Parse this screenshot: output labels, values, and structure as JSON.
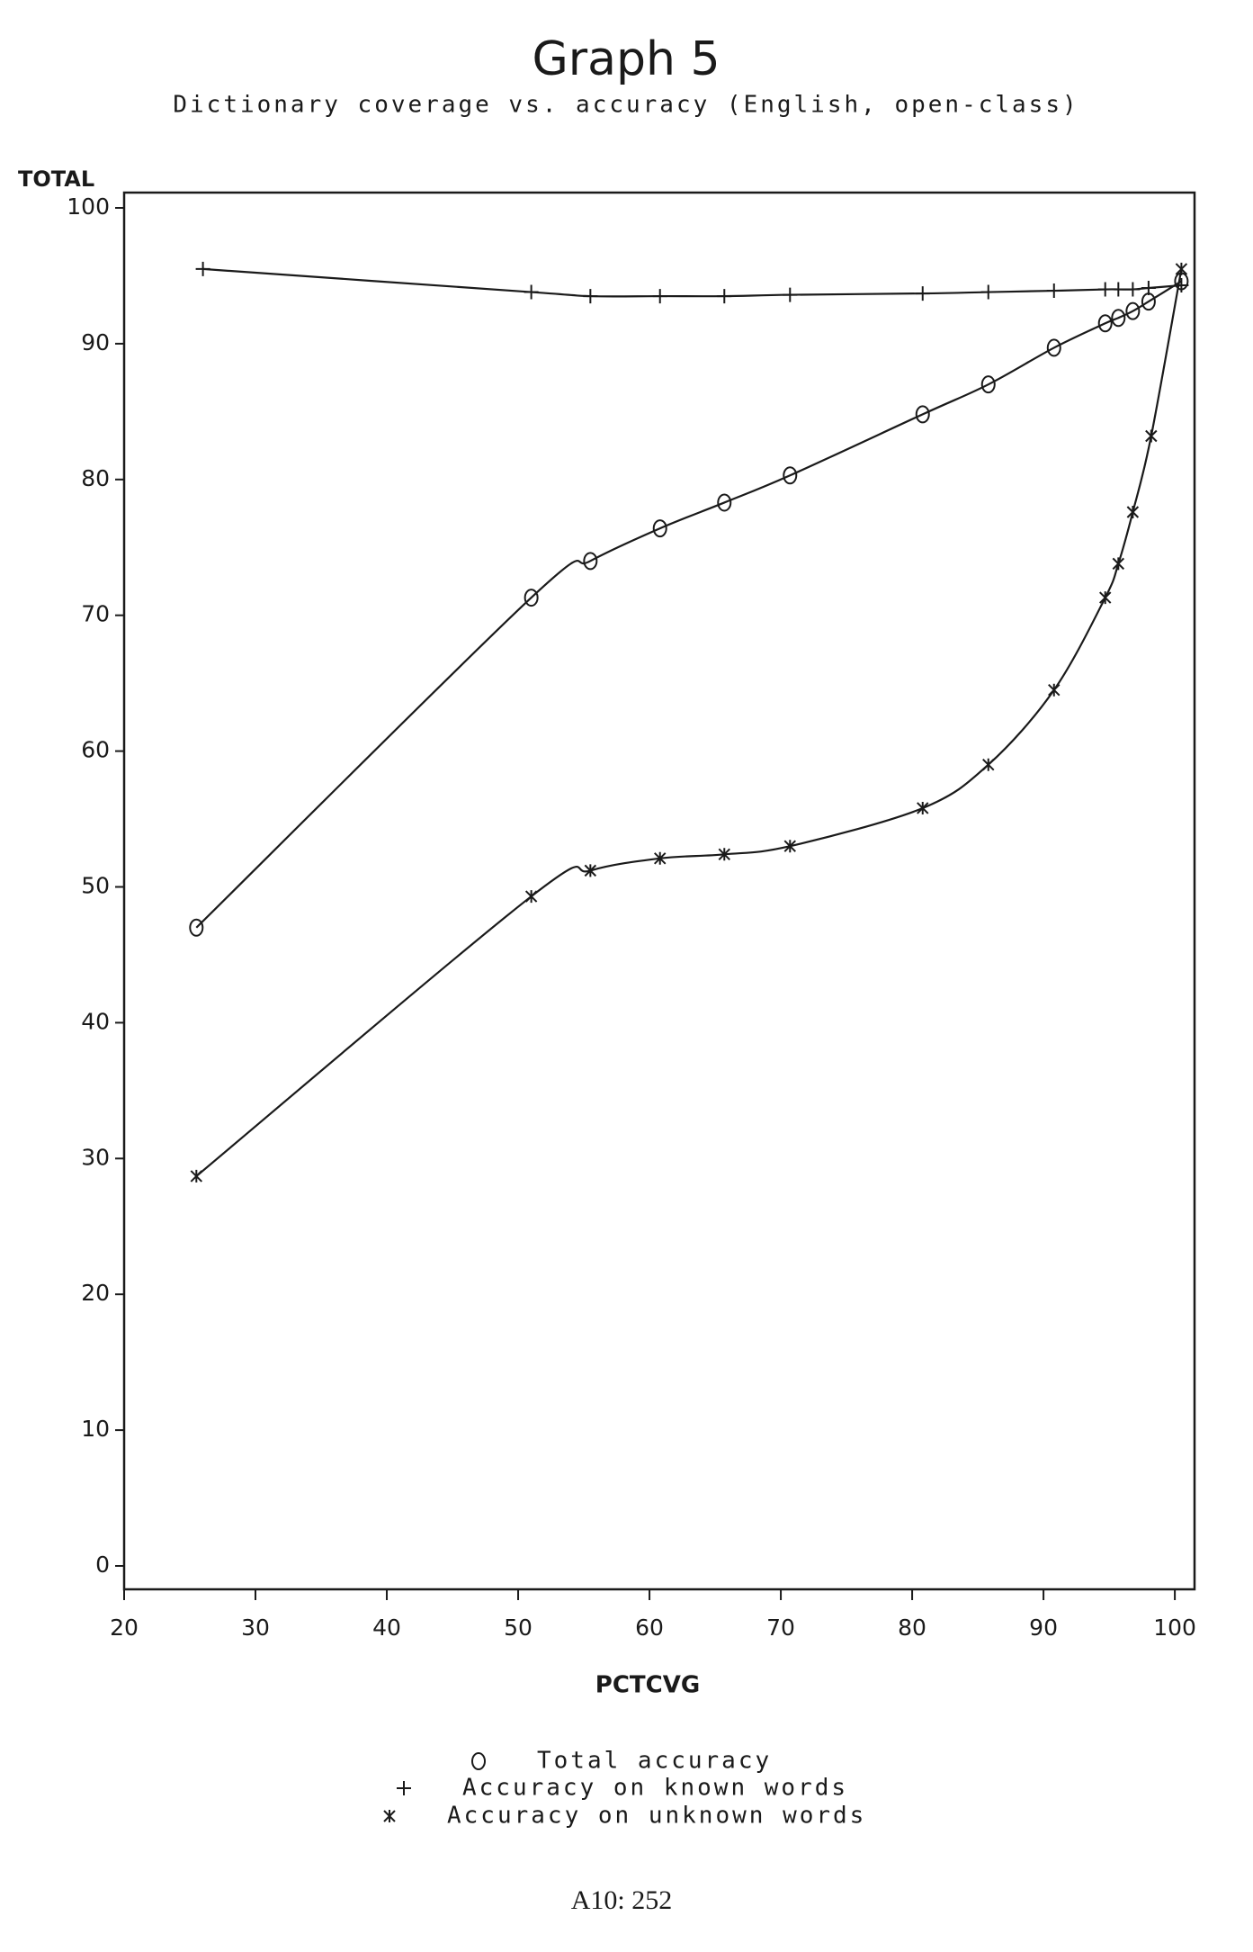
{
  "chart_data": {
    "type": "line",
    "title": "Graph 5",
    "subtitle": "Dictionary coverage vs. accuracy (English, open-class)",
    "y_label": "TOTAL",
    "x_label": "PCTCVG",
    "footer": "A10: 252",
    "xlim": [
      20,
      101.5
    ],
    "ylim": [
      0,
      100
    ],
    "xticks": [
      20,
      30,
      40,
      50,
      60,
      70,
      80,
      90,
      100
    ],
    "yticks": [
      0,
      10,
      20,
      30,
      40,
      50,
      60,
      70,
      80,
      90,
      100
    ],
    "series": [
      {
        "name": "Total accuracy",
        "marker": "circle",
        "color": "#1a1a1a",
        "x": [
          25.5,
          51,
          55.5,
          60.8,
          65.7,
          70.7,
          80.8,
          85.8,
          90.8,
          94.7,
          95.7,
          96.8,
          98,
          100.5
        ],
        "values": [
          47,
          71.3,
          74,
          76.4,
          78.3,
          80.3,
          84.8,
          87,
          89.7,
          91.5,
          91.9,
          92.4,
          93.1,
          94.6
        ]
      },
      {
        "name": "Accuracy on known words",
        "marker": "plus",
        "color": "#1a1a1a",
        "x": [
          26,
          51,
          55.5,
          60.8,
          65.7,
          70.7,
          80.8,
          85.8,
          90.8,
          94.7,
          95.7,
          96.8,
          98,
          100.5
        ],
        "values": [
          95.5,
          93.8,
          93.5,
          93.5,
          93.5,
          93.6,
          93.7,
          93.8,
          93.9,
          94,
          94,
          94,
          94.1,
          94.3
        ]
      },
      {
        "name": "Accuracy on unknown words",
        "marker": "star",
        "color": "#1a1a1a",
        "x": [
          25.5,
          51,
          55.5,
          60.8,
          65.7,
          70.7,
          80.8,
          85.8,
          90.8,
          94.7,
          95.7,
          96.8,
          98.2,
          100.5
        ],
        "values": [
          28.7,
          49.3,
          51.2,
          52.1,
          52.4,
          53,
          55.8,
          59,
          64.5,
          71.3,
          73.8,
          77.6,
          83.2,
          95.5
        ]
      }
    ]
  }
}
